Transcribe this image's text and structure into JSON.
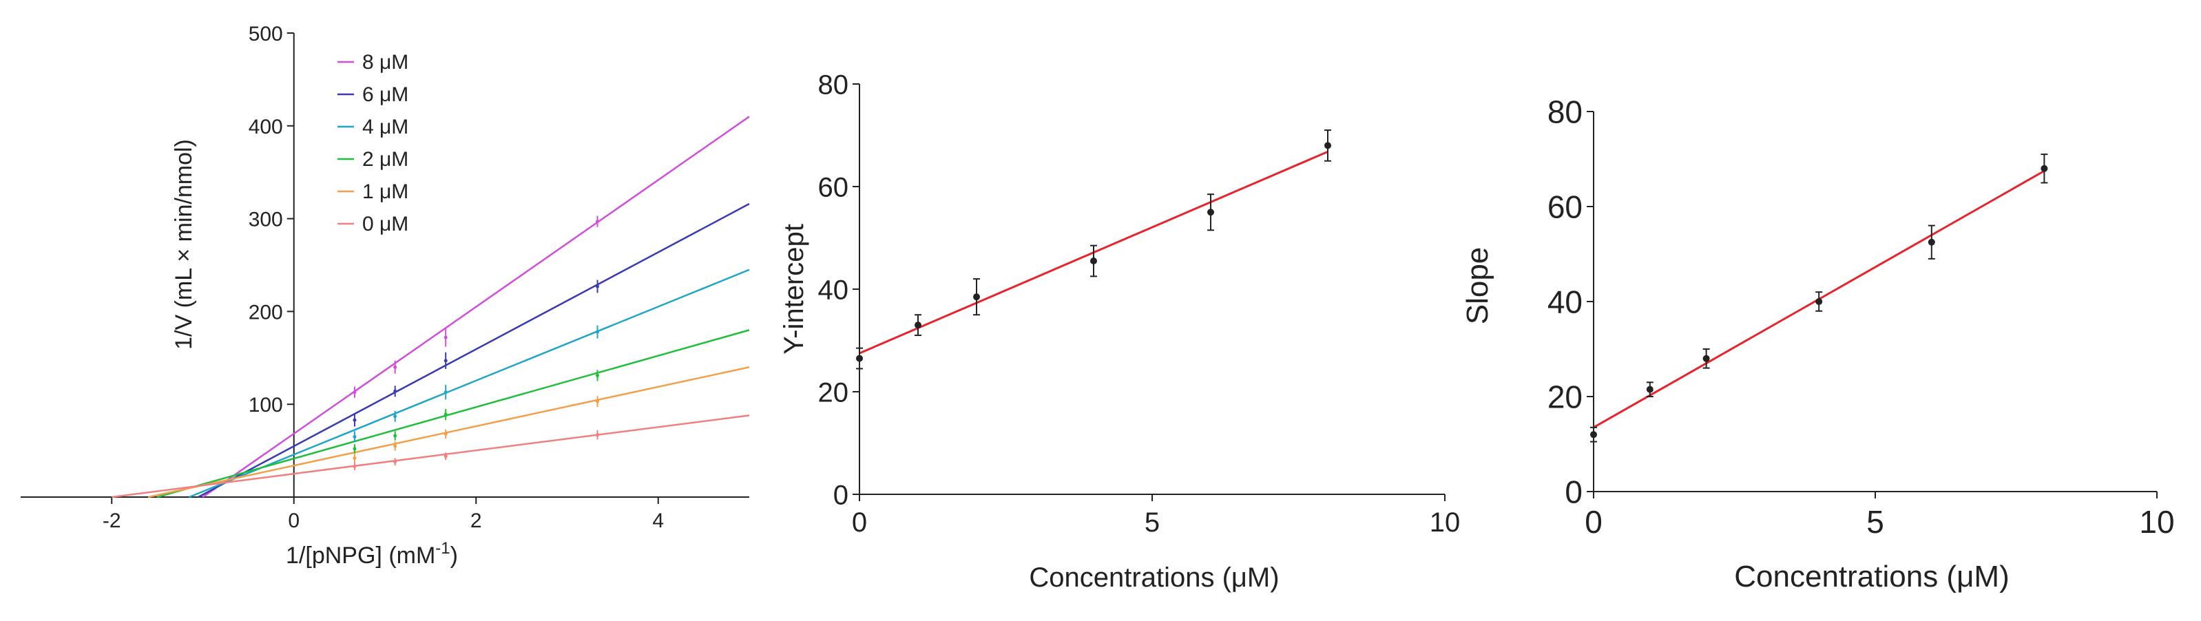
{
  "chart_data": [
    {
      "type": "line",
      "xlabel_main": "1/[pNPG] (mM",
      "xlabel_sup": "-1",
      "xlabel_close": ")",
      "ylabel": "1/V (mL × min/nmol)",
      "xlim": [
        -3,
        5
      ],
      "ylim": [
        0,
        500
      ],
      "xticks": [
        -2,
        0,
        2,
        4
      ],
      "yticks": [
        100,
        200,
        300,
        400,
        500
      ],
      "legend_position": "top-left",
      "series": [
        {
          "name": "8 μM",
          "color": "#d24ddb",
          "x": [
            0.667,
            1.111,
            1.667,
            3.333
          ],
          "y": [
            113,
            140,
            172,
            297
          ],
          "err": [
            6,
            7,
            10,
            6
          ]
        },
        {
          "name": "6 μM",
          "color": "#3a3ab4",
          "x": [
            0.667,
            1.111,
            1.667,
            3.333
          ],
          "y": [
            83,
            114,
            147,
            227
          ],
          "err": [
            7,
            6,
            9,
            7
          ]
        },
        {
          "name": "4 μM",
          "color": "#1fa5c8",
          "x": [
            0.667,
            1.111,
            1.667,
            3.333
          ],
          "y": [
            65,
            87,
            113,
            178
          ],
          "err": [
            6,
            6,
            8,
            7
          ]
        },
        {
          "name": "2 μM",
          "color": "#1fbf3c",
          "x": [
            0.667,
            1.111,
            1.667,
            3.333
          ],
          "y": [
            52,
            66,
            89,
            131
          ],
          "err": [
            5,
            5,
            6,
            6
          ]
        },
        {
          "name": "1 μM",
          "color": "#f2a04a",
          "x": [
            0.667,
            1.111,
            1.667,
            3.333
          ],
          "y": [
            42,
            55,
            68,
            103
          ],
          "err": [
            5,
            5,
            5,
            6
          ]
        },
        {
          "name": "0 μM",
          "color": "#f08080",
          "x": [
            0.667,
            1.111,
            1.667,
            3.333
          ],
          "y": [
            33,
            38,
            44,
            67
          ],
          "err": [
            4,
            4,
            4,
            5
          ]
        }
      ],
      "fit_lines": [
        {
          "series": "8 μM",
          "x": [
            -1.0,
            5.0
          ],
          "y": [
            0,
            410
          ]
        },
        {
          "series": "6 μM",
          "x": [
            -1.05,
            5.0
          ],
          "y": [
            0,
            316
          ]
        },
        {
          "series": "4 μM",
          "x": [
            -1.15,
            5.0
          ],
          "y": [
            0,
            245
          ]
        },
        {
          "series": "2 μM",
          "x": [
            -1.5,
            5.0
          ],
          "y": [
            0,
            180
          ]
        },
        {
          "series": "1 μM",
          "x": [
            -1.6,
            5.0
          ],
          "y": [
            0,
            140
          ]
        },
        {
          "series": "0 μM",
          "x": [
            -2.0,
            5.0
          ],
          "y": [
            0,
            88
          ]
        }
      ]
    },
    {
      "type": "scatter",
      "xlabel": "Concentrations (μM)",
      "ylabel": "Y-intercept",
      "xlim": [
        0,
        10
      ],
      "ylim": [
        0,
        80
      ],
      "xticks": [
        0,
        5,
        10
      ],
      "yticks": [
        0,
        20,
        40,
        60,
        80
      ],
      "line_color": "#e8232b",
      "x": [
        0,
        1,
        2,
        4,
        6,
        8
      ],
      "y": [
        26.5,
        33,
        38.5,
        45.5,
        55,
        68
      ],
      "err": [
        2,
        2,
        3.5,
        3,
        3.5,
        3
      ],
      "fit": {
        "x": [
          0,
          8
        ],
        "y": [
          27.5,
          66.8
        ]
      }
    },
    {
      "type": "scatter",
      "xlabel": "Concentrations (μM)",
      "ylabel": "Slope",
      "xlim": [
        0,
        10
      ],
      "ylim": [
        0,
        80
      ],
      "xticks": [
        0,
        5,
        10
      ],
      "yticks": [
        0,
        20,
        40,
        60,
        80
      ],
      "line_color": "#e8232b",
      "x": [
        0,
        1,
        2,
        4,
        6,
        8
      ],
      "y": [
        12,
        21.5,
        28,
        40,
        52.5,
        68
      ],
      "err": [
        1.5,
        1.5,
        2,
        2,
        3.5,
        3
      ],
      "fit": {
        "x": [
          0,
          8
        ],
        "y": [
          13.5,
          67.5
        ]
      }
    }
  ]
}
